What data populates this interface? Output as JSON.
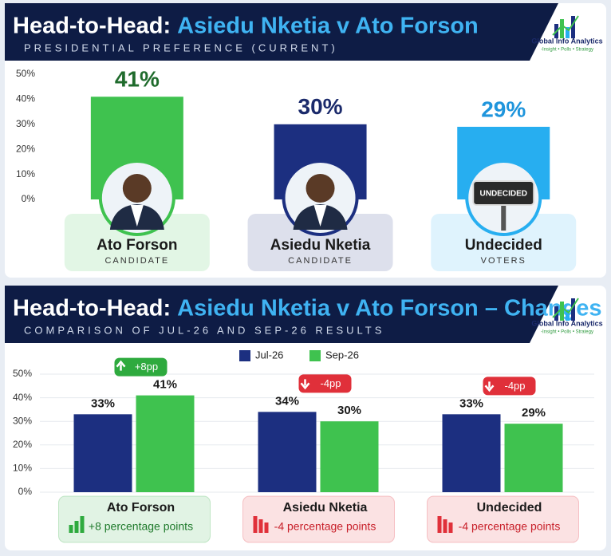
{
  "logo": {
    "name": "Global Info Analytics",
    "tagline": "-Insight • Polls • Strategy"
  },
  "chart_data": [
    {
      "type": "bar",
      "title": {
        "lead": "Head-to-Head:",
        "highlight": "Asiedu Nketia v Ato Forson"
      },
      "subtitle": "PRESIDENTIAL PREFERENCE (CURRENT)",
      "categories": [
        "Ato Forson",
        "Asiedu Nketia",
        "Undecided"
      ],
      "roles": [
        "CANDIDATE",
        "CANDIDATE",
        "VOTERS"
      ],
      "values": [
        41,
        30,
        29
      ],
      "value_labels": [
        "41%",
        "30%",
        "29%"
      ],
      "colors": [
        "#3fc24f",
        "#1c2f80",
        "#27aef0"
      ],
      "value_label_colors": [
        "#1f6b2c",
        "#1b2a6b",
        "#1f95dc"
      ],
      "sign_text": "UNDECIDED",
      "ylim": [
        0,
        50
      ],
      "yticks": [
        {
          "value": 0,
          "label": "0%"
        },
        {
          "value": 10,
          "label": "10%"
        },
        {
          "value": 20,
          "label": "20%"
        },
        {
          "value": 30,
          "label": "30%"
        },
        {
          "value": 40,
          "label": "40%"
        },
        {
          "value": 50,
          "label": "50%"
        }
      ],
      "grid": false
    },
    {
      "type": "grouped-bar",
      "title": {
        "lead": "Head-to-Head:",
        "highlight": "Asiedu Nketia v Ato Forson – Changes"
      },
      "subtitle": "COMPARISON OF JUL-26 AND SEP-26 RESULTS",
      "categories": [
        "Ato Forson",
        "Asiedu Nketia",
        "Undecided"
      ],
      "series": [
        {
          "name": "Jul-26",
          "color": "#1c2f80",
          "values": [
            33,
            34,
            33
          ],
          "value_labels": [
            "33%",
            "34%",
            "33%"
          ]
        },
        {
          "name": "Sep-26",
          "color": "#3fc24f",
          "values": [
            41,
            30,
            29
          ],
          "value_labels": [
            "41%",
            "30%",
            "29%"
          ]
        }
      ],
      "changes": [
        8,
        -4,
        -4
      ],
      "change_labels": [
        "+8pp",
        "-4pp",
        "-4pp"
      ],
      "change_notes": [
        "+8 percentage points",
        "-4 percentage points",
        "-4 percentage points"
      ],
      "ylim": [
        0,
        50
      ],
      "yticks": [
        {
          "value": 0,
          "label": "0%"
        },
        {
          "value": 10,
          "label": "10%"
        },
        {
          "value": 20,
          "label": "20%"
        },
        {
          "value": 30,
          "label": "30%"
        },
        {
          "value": 40,
          "label": "40%"
        },
        {
          "value": 50,
          "label": "50%"
        }
      ],
      "grid": true
    }
  ]
}
